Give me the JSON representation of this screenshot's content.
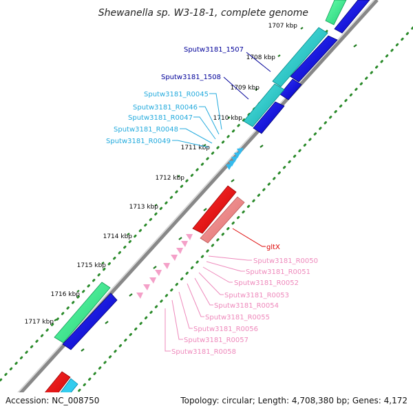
{
  "title": "Shewanella sp. W3-18-1, complete genome",
  "footer": {
    "accession": "Accession: NC_008750",
    "summary": "Topology: circular; Length: 4,708,380 bp; Genes: 4,172"
  },
  "kbp_ticks": [
    "1707 kbp",
    "1708 kbp",
    "1709 kbp",
    "1710 kbp",
    "1711 kbp",
    "1712 kbp",
    "1713 kbp",
    "1714 kbp",
    "1715 kbp",
    "1716 kbp",
    "1717 kbp"
  ],
  "gene_labels": {
    "sputw3181_1507": "Sputw3181_1507",
    "sputw3181_1508": "Sputw3181_1508",
    "r0045": "Sputw3181_R0045",
    "r0046": "Sputw3181_R0046",
    "r0047": "Sputw3181_R0047",
    "r0048": "Sputw3181_R0048",
    "r0049": "Sputw3181_R0049",
    "gltx": "gltX",
    "r0050": "Sputw3181_R0050",
    "r0051": "Sputw3181_R0051",
    "r0052": "Sputw3181_R0052",
    "r0053": "Sputw3181_R0053",
    "r0054": "Sputw3181_R0054",
    "r0055": "Sputw3181_R0055",
    "r0056": "Sputw3181_R0056",
    "r0057": "Sputw3181_R0057",
    "r0058": "Sputw3181_R0058"
  },
  "colors": {
    "background": "#ffffff",
    "backbone": "#888888",
    "tick_green": "#2a8a2a",
    "cds_blue": "#0000dd",
    "cds_cyan": "#22cccc",
    "cds_green": "#33ee88",
    "cds_red": "#ee0000",
    "cds_salmon": "#ee8080",
    "trna_cyan": "#33bbee",
    "trna_pink": "#f4a0c8",
    "label_navy": "#000099",
    "label_cyan": "#22aadd",
    "label_red": "#dd0000",
    "label_pink": "#ee88bb"
  }
}
